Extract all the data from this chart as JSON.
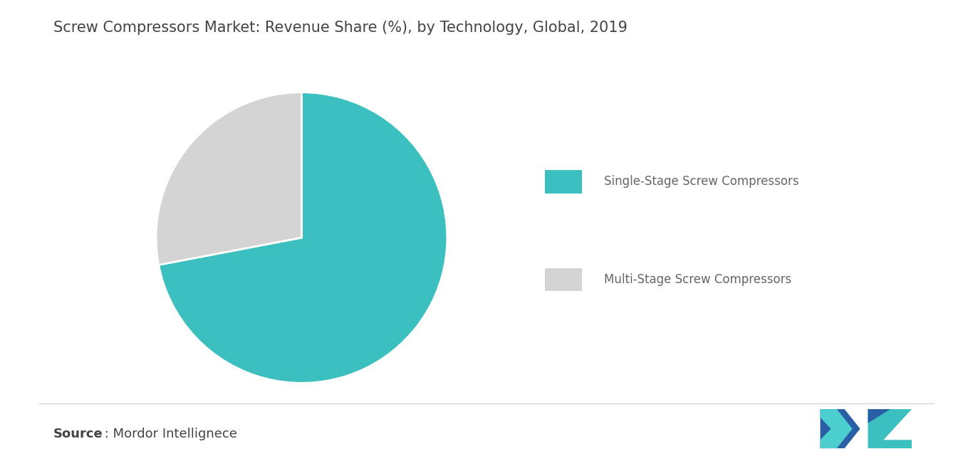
{
  "title": "Screw Compressors Market: Revenue Share (%), by Technology, Global, 2019",
  "labels": [
    "Single-Stage Screw Compressors",
    "Multi-Stage Screw Compressors"
  ],
  "values": [
    72,
    28
  ],
  "colors": [
    "#3bbfbf",
    "#d4d4d4"
  ],
  "background_color": "#ffffff",
  "source_bold": "Source",
  "source_rest": " : Mordor Intellignece",
  "title_fontsize": 15,
  "legend_fontsize": 12,
  "source_fontsize": 13,
  "startangle": 90
}
